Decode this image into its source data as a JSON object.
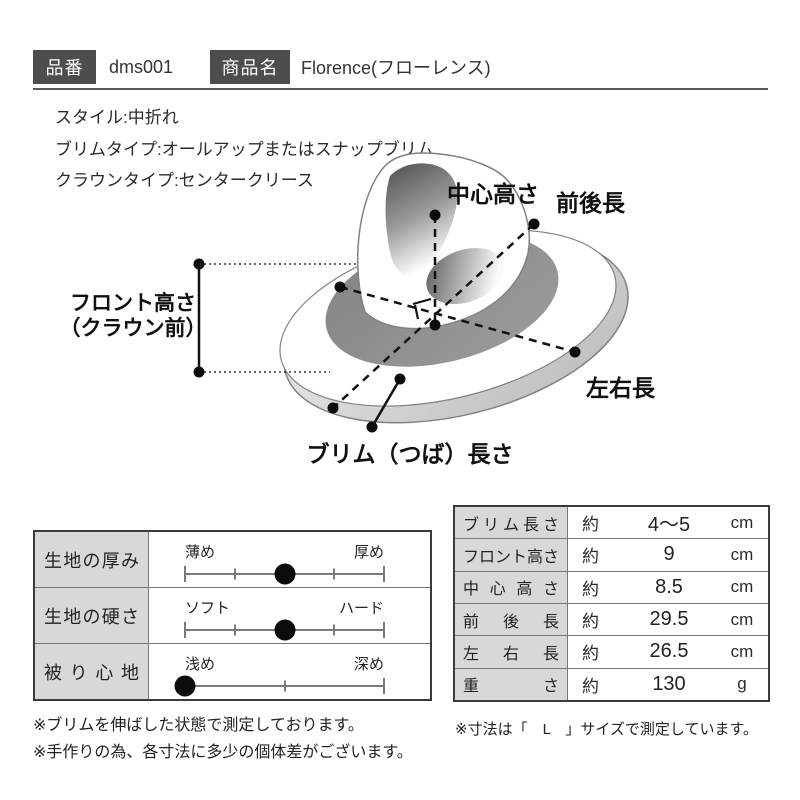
{
  "colors": {
    "tag_bg": "#4d4d4d",
    "cell_bg": "#d8d8d8",
    "line": "#111111"
  },
  "header": {
    "item_label": "品番",
    "item_value": "dms001",
    "name_label": "商品名",
    "name_value": "Florence(フローレンス)"
  },
  "specs": [
    {
      "text": "スタイル:中折れ"
    },
    {
      "text": "ブリムタイプ:オールアップまたはスナップブリム"
    },
    {
      "text": "クラウンタイプ:センタークリース"
    }
  ],
  "diagram": {
    "labels": {
      "center_height": "中心高さ",
      "front_back_length": "前後長",
      "left_right_length": "左右長",
      "brim_length": "ブリム（つば）長さ",
      "front_height_1": "フロント高さ",
      "front_height_2": "（クラウン前）"
    }
  },
  "sliders": {
    "rows": [
      {
        "label": "生地の厚み",
        "min": "薄め",
        "max": "厚め",
        "value_pct": 50,
        "ticks": [
          0,
          25,
          50,
          75,
          100
        ]
      },
      {
        "label": "生地の硬さ",
        "min": "ソフト",
        "max": "ハード",
        "value_pct": 50,
        "ticks": [
          0,
          25,
          50,
          75,
          100
        ]
      },
      {
        "label": "被り心地",
        "min": "浅め",
        "max": "深め",
        "value_pct": 0,
        "ticks": [
          0,
          50,
          100
        ]
      }
    ]
  },
  "measurements": {
    "rows": [
      {
        "label": "ブリム長さ",
        "approx": "約",
        "value": "4～5",
        "unit": "cm"
      },
      {
        "label": "フロント高さ",
        "approx": "約",
        "value": "9",
        "unit": "cm"
      },
      {
        "label": "中心高さ",
        "approx": "約",
        "value": "8.5",
        "unit": "cm"
      },
      {
        "label": "前後長",
        "approx": "約",
        "value": "29.5",
        "unit": "cm"
      },
      {
        "label": "左右長",
        "approx": "約",
        "value": "26.5",
        "unit": "cm"
      },
      {
        "label": "重さ",
        "approx": "約",
        "value": "130",
        "unit": "g"
      }
    ]
  },
  "footnotes": {
    "left": [
      "※ブリムを伸ばした状態で測定しております。",
      "※手作りの為、各寸法に多少の個体差がございます。"
    ],
    "right": [
      "※寸法は「　L　」サイズで測定しています。"
    ]
  }
}
